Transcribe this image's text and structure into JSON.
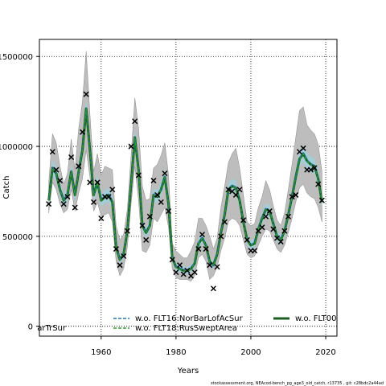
{
  "chart_data": {
    "type": "line",
    "xlabel": "Years",
    "ylabel": "Catch",
    "xlim": [
      1943.5,
      2023
    ],
    "ylim": [
      -55000,
      1595000
    ],
    "xticks": [
      1960,
      1980,
      2000,
      2020
    ],
    "yticks": [
      0,
      500000,
      1000000,
      1500000
    ],
    "ytick_labels": [
      "0",
      "500000",
      "1000000",
      "1500000"
    ],
    "grid": true,
    "legend_position": "bottom",
    "legend": [
      {
        "label": "arTrSur",
        "style": "clipped",
        "color": "#1a1a1a"
      },
      {
        "label": "w.o. FLT16:NorBarLofAcSur",
        "style": "dashed",
        "color": "#1f77b4"
      },
      {
        "label": "w.o. FLT18:RusSweptArea",
        "style": "dashed",
        "color": "#2ca02c"
      },
      {
        "label": "w.o. FLT00",
        "style": "solid",
        "color": "#1a1a1a"
      }
    ],
    "x": [
      1946,
      1947,
      1948,
      1949,
      1950,
      1951,
      1952,
      1953,
      1954,
      1955,
      1956,
      1957,
      1958,
      1959,
      1960,
      1961,
      1962,
      1963,
      1964,
      1965,
      1966,
      1967,
      1968,
      1969,
      1970,
      1971,
      1972,
      1973,
      1974,
      1975,
      1976,
      1977,
      1978,
      1979,
      1980,
      1981,
      1982,
      1983,
      1984,
      1985,
      1986,
      1987,
      1988,
      1989,
      1990,
      1991,
      1992,
      1993,
      1994,
      1995,
      1996,
      1997,
      1998,
      1999,
      2000,
      2001,
      2002,
      2003,
      2004,
      2005,
      2006,
      2007,
      2008,
      2009,
      2010,
      2011,
      2012,
      2013,
      2014,
      2015,
      2016,
      2017,
      2018,
      2019
    ],
    "series": [
      {
        "name": "w.o. FLT00",
        "values": [
          700000,
          880000,
          850000,
          760000,
          700000,
          730000,
          860000,
          730000,
          860000,
          980000,
          1210000,
          980000,
          730000,
          800000,
          700000,
          720000,
          730000,
          690000,
          440000,
          370000,
          400000,
          530000,
          790000,
          1050000,
          870000,
          560000,
          520000,
          560000,
          730000,
          720000,
          760000,
          830000,
          680000,
          380000,
          330000,
          320000,
          310000,
          310000,
          320000,
          350000,
          460000,
          490000,
          450000,
          360000,
          340000,
          400000,
          520000,
          620000,
          760000,
          780000,
          770000,
          700000,
          580000,
          480000,
          450000,
          460000,
          540000,
          600000,
          650000,
          640000,
          570000,
          500000,
          480000,
          530000,
          620000,
          720000,
          830000,
          930000,
          960000,
          920000,
          900000,
          890000,
          820000,
          690000
        ]
      },
      {
        "name": "w.o. FLT16:NorBarLofAcSur",
        "values": [
          705000,
          885000,
          855000,
          765000,
          705000,
          735000,
          865000,
          735000,
          865000,
          985000,
          1215000,
          985000,
          735000,
          805000,
          705000,
          725000,
          735000,
          695000,
          445000,
          375000,
          405000,
          535000,
          795000,
          1055000,
          875000,
          565000,
          525000,
          565000,
          735000,
          725000,
          765000,
          835000,
          685000,
          385000,
          335000,
          325000,
          315000,
          315000,
          325000,
          355000,
          465000,
          495000,
          455000,
          345000,
          335000,
          405000,
          525000,
          625000,
          765000,
          785000,
          775000,
          705000,
          585000,
          485000,
          455000,
          465000,
          545000,
          605000,
          655000,
          645000,
          575000,
          505000,
          485000,
          535000,
          625000,
          725000,
          835000,
          935000,
          965000,
          925000,
          905000,
          895000,
          825000,
          695000
        ]
      },
      {
        "name": "w.o. FLT18:RusSweptArea",
        "values": [
          698000,
          878000,
          848000,
          758000,
          698000,
          728000,
          858000,
          728000,
          858000,
          978000,
          1208000,
          978000,
          728000,
          798000,
          698000,
          718000,
          728000,
          688000,
          438000,
          368000,
          398000,
          528000,
          788000,
          1048000,
          868000,
          558000,
          518000,
          558000,
          728000,
          718000,
          758000,
          828000,
          678000,
          378000,
          328000,
          318000,
          308000,
          308000,
          318000,
          348000,
          458000,
          488000,
          448000,
          358000,
          338000,
          398000,
          518000,
          618000,
          758000,
          778000,
          768000,
          698000,
          578000,
          478000,
          448000,
          458000,
          538000,
          598000,
          648000,
          638000,
          568000,
          498000,
          478000,
          528000,
          618000,
          718000,
          828000,
          928000,
          958000,
          918000,
          898000,
          888000,
          818000,
          688000
        ]
      }
    ],
    "band": {
      "lower": [
        630000,
        800000,
        760000,
        680000,
        630000,
        650000,
        760000,
        640000,
        740000,
        820000,
        980000,
        830000,
        640000,
        690000,
        610000,
        620000,
        630000,
        580000,
        360000,
        280000,
        320000,
        440000,
        680000,
        890000,
        700000,
        420000,
        410000,
        450000,
        600000,
        580000,
        620000,
        660000,
        550000,
        320000,
        270000,
        260000,
        260000,
        260000,
        250000,
        280000,
        380000,
        400000,
        360000,
        260000,
        280000,
        330000,
        420000,
        490000,
        580000,
        600000,
        590000,
        560000,
        480000,
        400000,
        380000,
        390000,
        450000,
        500000,
        540000,
        530000,
        480000,
        430000,
        410000,
        450000,
        520000,
        600000,
        690000,
        770000,
        790000,
        740000,
        720000,
        710000,
        660000,
        580000
      ],
      "upper": [
        800000,
        1070000,
        1020000,
        890000,
        790000,
        850000,
        1040000,
        870000,
        1100000,
        1250000,
        1530000,
        1180000,
        860000,
        960000,
        840000,
        890000,
        880000,
        870000,
        560000,
        480000,
        510000,
        650000,
        950000,
        1270000,
        1100000,
        780000,
        700000,
        710000,
        880000,
        900000,
        950000,
        1020000,
        840000,
        460000,
        420000,
        400000,
        380000,
        380000,
        420000,
        470000,
        600000,
        600000,
        560000,
        500000,
        430000,
        490000,
        660000,
        780000,
        910000,
        960000,
        990000,
        880000,
        730000,
        580000,
        560000,
        570000,
        660000,
        720000,
        810000,
        760000,
        670000,
        590000,
        560000,
        630000,
        760000,
        900000,
        1050000,
        1200000,
        1220000,
        1120000,
        1090000,
        1070000,
        1010000,
        860000
      ]
    },
    "observed": [
      [
        1946,
        680000
      ],
      [
        1947,
        970000
      ],
      [
        1948,
        870000
      ],
      [
        1949,
        810000
      ],
      [
        1950,
        680000
      ],
      [
        1951,
        720000
      ],
      [
        1952,
        940000
      ],
      [
        1953,
        660000
      ],
      [
        1954,
        890000
      ],
      [
        1955,
        1080000
      ],
      [
        1956,
        1290000
      ],
      [
        1957,
        800000
      ],
      [
        1958,
        690000
      ],
      [
        1959,
        800000
      ],
      [
        1960,
        600000
      ],
      [
        1961,
        720000
      ],
      [
        1962,
        720000
      ],
      [
        1963,
        760000
      ],
      [
        1964,
        430000
      ],
      [
        1965,
        340000
      ],
      [
        1966,
        390000
      ],
      [
        1967,
        530000
      ],
      [
        1968,
        1000000
      ],
      [
        1969,
        1140000
      ],
      [
        1970,
        840000
      ],
      [
        1971,
        560000
      ],
      [
        1972,
        480000
      ],
      [
        1973,
        610000
      ],
      [
        1974,
        810000
      ],
      [
        1975,
        730000
      ],
      [
        1976,
        690000
      ],
      [
        1977,
        850000
      ],
      [
        1978,
        640000
      ],
      [
        1979,
        370000
      ],
      [
        1980,
        300000
      ],
      [
        1981,
        340000
      ],
      [
        1982,
        290000
      ],
      [
        1983,
        310000
      ],
      [
        1984,
        280000
      ],
      [
        1985,
        300000
      ],
      [
        1986,
        430000
      ],
      [
        1987,
        510000
      ],
      [
        1988,
        430000
      ],
      [
        1989,
        340000
      ],
      [
        1990,
        210000
      ],
      [
        1991,
        330000
      ],
      [
        1992,
        500000
      ],
      [
        1993,
        580000
      ],
      [
        1994,
        760000
      ],
      [
        1995,
        750000
      ],
      [
        1996,
        730000
      ],
      [
        1997,
        760000
      ],
      [
        1998,
        590000
      ],
      [
        1999,
        480000
      ],
      [
        2000,
        420000
      ],
      [
        2001,
        420000
      ],
      [
        2002,
        530000
      ],
      [
        2003,
        550000
      ],
      [
        2004,
        610000
      ],
      [
        2005,
        640000
      ],
      [
        2006,
        540000
      ],
      [
        2007,
        490000
      ],
      [
        2008,
        470000
      ],
      [
        2009,
        530000
      ],
      [
        2010,
        610000
      ],
      [
        2011,
        720000
      ],
      [
        2012,
        730000
      ],
      [
        2013,
        970000
      ],
      [
        2014,
        990000
      ],
      [
        2015,
        870000
      ],
      [
        2016,
        870000
      ],
      [
        2017,
        880000
      ],
      [
        2018,
        790000
      ],
      [
        2019,
        700000
      ]
    ],
    "colors": {
      "band": "#bdbdbd",
      "band_inner": "#9fd0dc",
      "main": "#2e7d32",
      "dash1": "#1f77b4",
      "dash2": "#2ca02c",
      "marker": "#000000"
    }
  },
  "footer": "stockassessment.org, NEAcod-bench_pg_age3_old_catch, r13735 , git: c28bdc2a44ad"
}
